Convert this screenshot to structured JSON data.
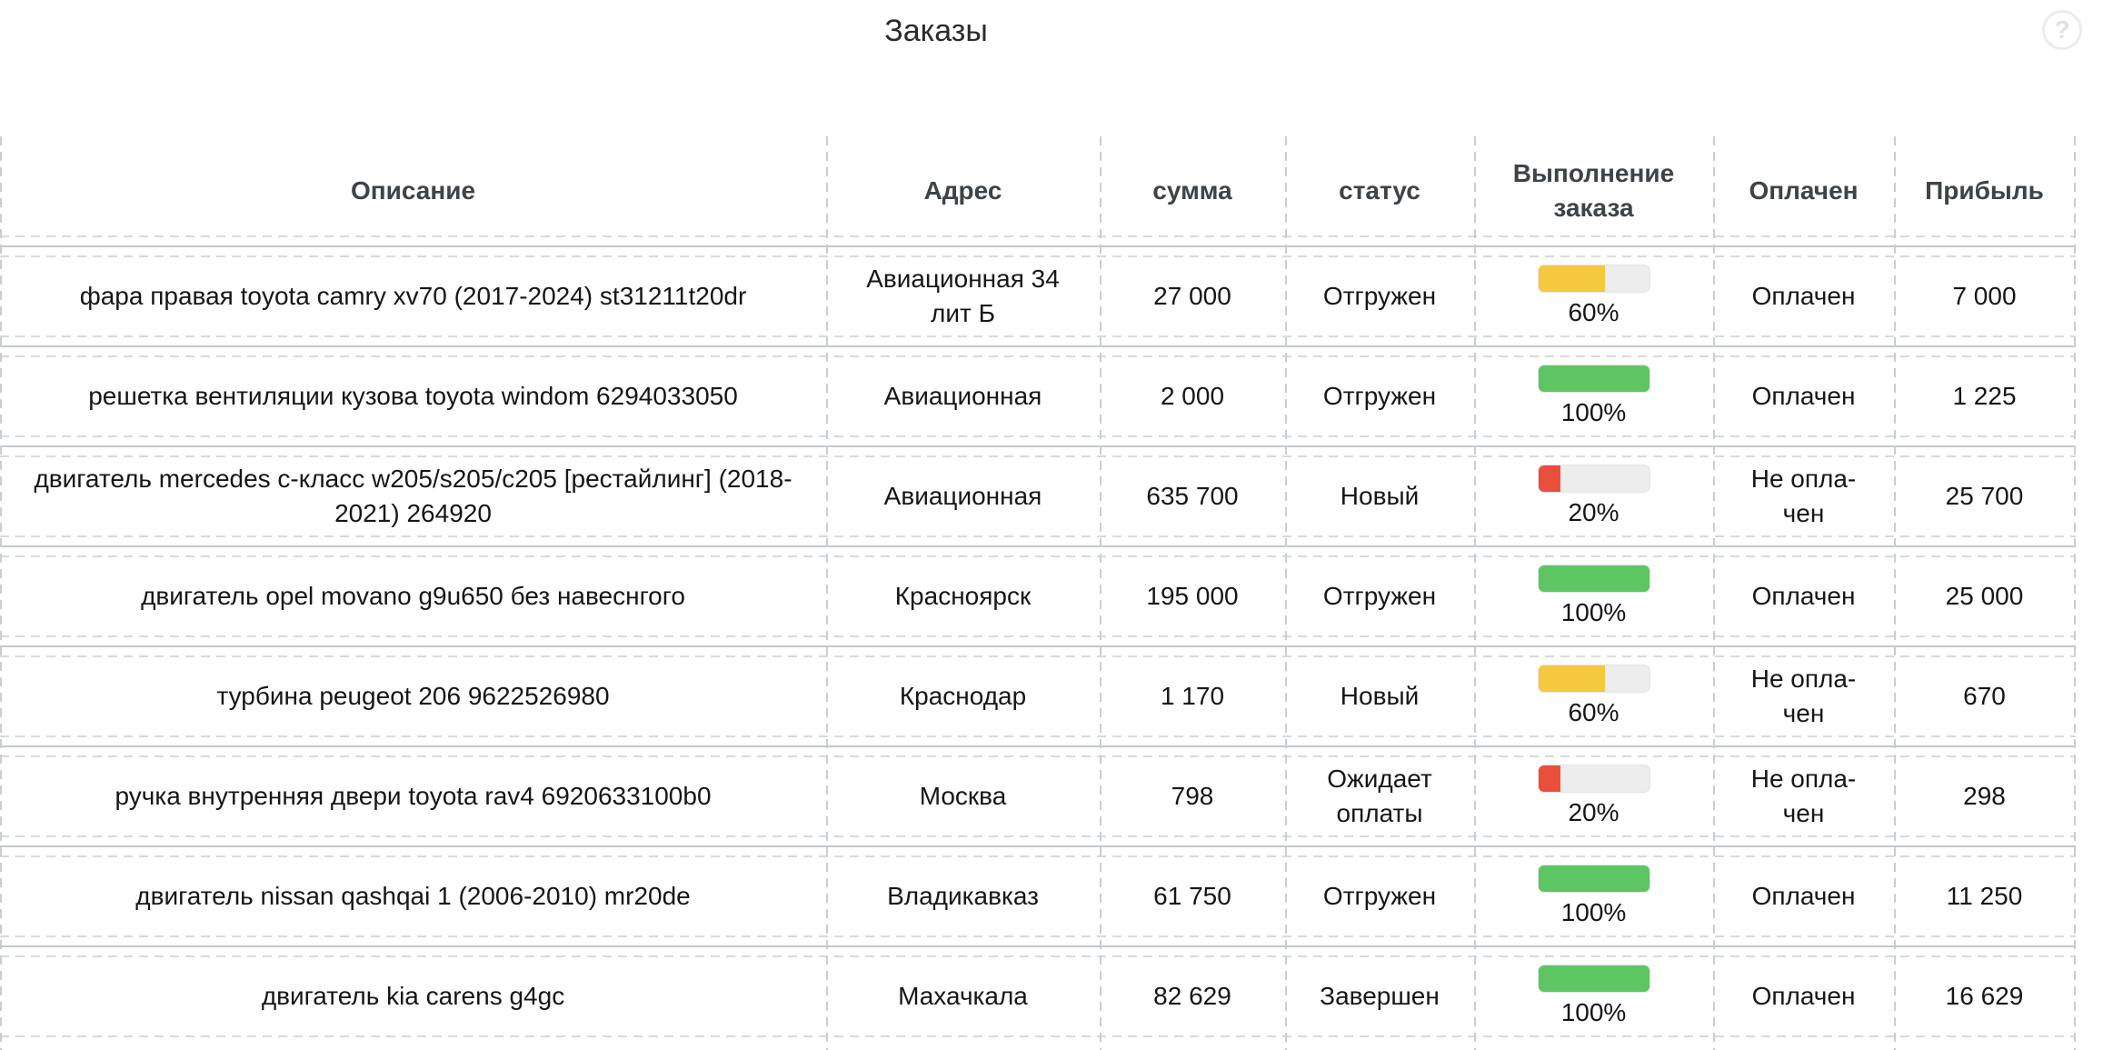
{
  "title": "Заказы",
  "help_icon": "?",
  "colors": {
    "yellow": "#f6c83f",
    "green": "#5dc561",
    "red": "#ea4f3b",
    "track": "#ededed"
  },
  "table": {
    "columns": [
      {
        "label": "Описание"
      },
      {
        "label": "Адрес"
      },
      {
        "label": "сумма"
      },
      {
        "label": "статус"
      },
      {
        "label": "Выполнение заказа"
      },
      {
        "label": "Оплачен"
      },
      {
        "label": "Прибыль"
      }
    ],
    "rows": [
      {
        "description": "фара правая toyota camry xv70 (2017-2024) st31211t20dr",
        "address": "Авиационная 34 лит Б",
        "sum": "27 000",
        "status": "Отгружен",
        "progress": {
          "percent": 60,
          "color": "yellow",
          "label": "60%"
        },
        "paid": "Оплачен",
        "profit": "7 000"
      },
      {
        "description": "решетка вентиляции кузова toyota windom 6294033050",
        "address": "Авиационная",
        "sum": "2 000",
        "status": "Отгружен",
        "progress": {
          "percent": 100,
          "color": "green",
          "label": "100%"
        },
        "paid": "Оплачен",
        "profit": "1 225"
      },
      {
        "description": "двигатель mercedes c-класс w205/s205/c205 [рестайлинг] (2018-2021) 264920",
        "address": "Авиационная",
        "sum": "635 700",
        "status": "Новый",
        "progress": {
          "percent": 20,
          "color": "red",
          "label": "20%"
        },
        "paid": "Не опла-\nчен",
        "profit": "25 700"
      },
      {
        "description": "двигатель opel movano g9u650 без навеснгого",
        "address": "Красноярск",
        "sum": "195 000",
        "status": "Отгружен",
        "progress": {
          "percent": 100,
          "color": "green",
          "label": "100%"
        },
        "paid": "Оплачен",
        "profit": "25 000"
      },
      {
        "description": "турбина peugeot 206 9622526980",
        "address": "Краснодар",
        "sum": "1 170",
        "status": "Новый",
        "progress": {
          "percent": 60,
          "color": "yellow",
          "label": "60%"
        },
        "paid": "Не опла-\nчен",
        "profit": "670"
      },
      {
        "description": "ручка внутренняя двери toyota rav4 6920633100b0",
        "address": "Москва",
        "sum": "798",
        "status": "Ожидает оплаты",
        "progress": {
          "percent": 20,
          "color": "red",
          "label": "20%"
        },
        "paid": "Не опла-\nчен",
        "profit": "298"
      },
      {
        "description": "двигатель nissan qashqai 1 (2006-2010) mr20de",
        "address": "Владикавказ",
        "sum": "61 750",
        "status": "Отгружен",
        "progress": {
          "percent": 100,
          "color": "green",
          "label": "100%"
        },
        "paid": "Оплачен",
        "profit": "11 250"
      },
      {
        "description": "двигатель kia carens g4gc",
        "address": "Махачкала",
        "sum": "82 629",
        "status": "Завершен",
        "progress": {
          "percent": 100,
          "color": "green",
          "label": "100%"
        },
        "paid": "Оплачен",
        "profit": "16 629"
      }
    ]
  }
}
